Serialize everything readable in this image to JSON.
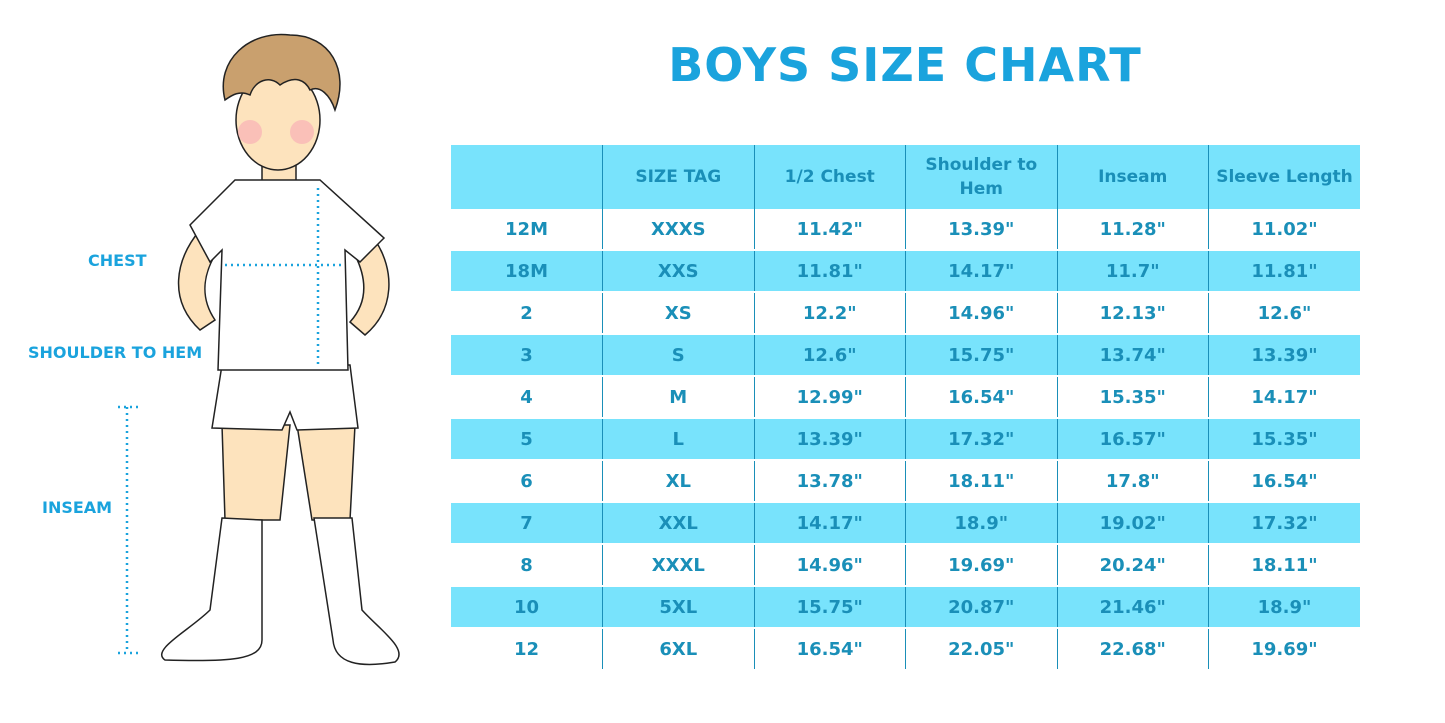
{
  "title": "BOYS SIZE CHART",
  "labels": {
    "chest": "CHEST",
    "shoulder_to_hem": "SHOULDER TO HEM",
    "inseam": "INSEAM"
  },
  "colors": {
    "title": "#1aa3dd",
    "table_text": "#1a8fb8",
    "stripe": "#78e3fc"
  },
  "table": {
    "headers": [
      "",
      "SIZE TAG",
      "1/2 Chest",
      "Shoulder to Hem",
      "Inseam",
      "Sleeve Length"
    ],
    "rows": [
      [
        "12M",
        "XXXS",
        "11.42\"",
        "13.39\"",
        "11.28\"",
        "11.02\""
      ],
      [
        "18M",
        "XXS",
        "11.81\"",
        "14.17\"",
        "11.7\"",
        "11.81\""
      ],
      [
        "2",
        "XS",
        "12.2\"",
        "14.96\"",
        "12.13\"",
        "12.6\""
      ],
      [
        "3",
        "S",
        "12.6\"",
        "15.75\"",
        "13.74\"",
        "13.39\""
      ],
      [
        "4",
        "M",
        "12.99\"",
        "16.54\"",
        "15.35\"",
        "14.17\""
      ],
      [
        "5",
        "L",
        "13.39\"",
        "17.32\"",
        "16.57\"",
        "15.35\""
      ],
      [
        "6",
        "XL",
        "13.78\"",
        "18.11\"",
        "17.8\"",
        "16.54\""
      ],
      [
        "7",
        "XXL",
        "14.17\"",
        "18.9\"",
        "19.02\"",
        "17.32\""
      ],
      [
        "8",
        "XXXL",
        "14.96\"",
        "19.69\"",
        "20.24\"",
        "18.11\""
      ],
      [
        "10",
        "5XL",
        "15.75\"",
        "20.87\"",
        "21.46\"",
        "18.9\""
      ],
      [
        "12",
        "6XL",
        "16.54\"",
        "22.05\"",
        "22.68\"",
        "19.69\""
      ]
    ]
  }
}
